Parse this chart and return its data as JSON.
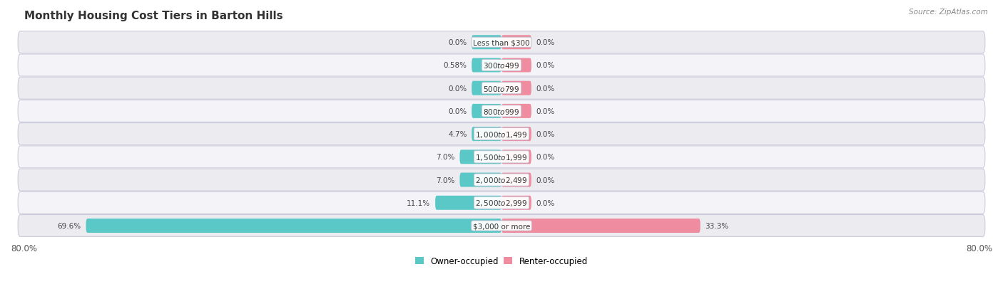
{
  "title": "Monthly Housing Cost Tiers in Barton Hills",
  "source": "Source: ZipAtlas.com",
  "categories": [
    "Less than $300",
    "$300 to $499",
    "$500 to $799",
    "$800 to $999",
    "$1,000 to $1,499",
    "$1,500 to $1,999",
    "$2,000 to $2,499",
    "$2,500 to $2,999",
    "$3,000 or more"
  ],
  "owner_values": [
    0.0,
    0.58,
    0.0,
    0.0,
    4.7,
    7.0,
    7.0,
    11.1,
    69.6
  ],
  "renter_values": [
    0.0,
    0.0,
    0.0,
    0.0,
    0.0,
    0.0,
    0.0,
    0.0,
    33.3
  ],
  "owner_labels": [
    "0.0%",
    "0.58%",
    "0.0%",
    "0.0%",
    "4.7%",
    "7.0%",
    "7.0%",
    "11.1%",
    "69.6%"
  ],
  "renter_labels": [
    "0.0%",
    "0.0%",
    "0.0%",
    "0.0%",
    "0.0%",
    "0.0%",
    "0.0%",
    "0.0%",
    "33.3%"
  ],
  "owner_color": "#5BC8C8",
  "renter_color": "#F08CA0",
  "axis_max": 80.0,
  "small_bar_display": 5.0,
  "bar_height": 0.62
}
